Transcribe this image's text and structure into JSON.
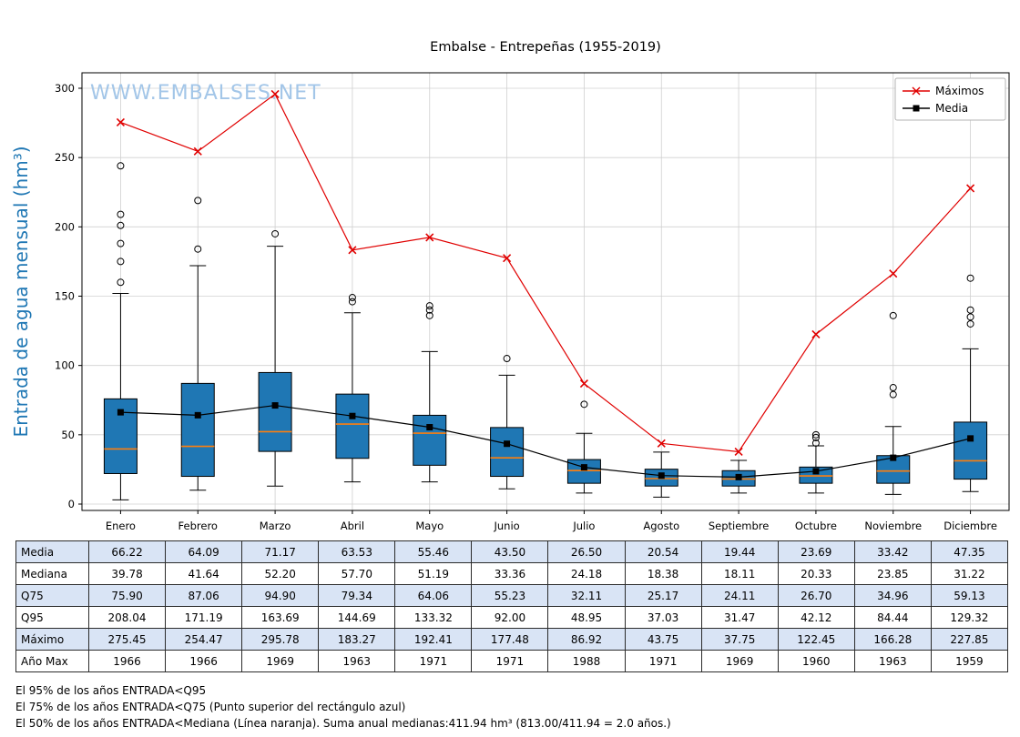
{
  "title": "Embalse - Entrepeñas (1955-2019)",
  "watermark": "WWW.EMBALSES.NET",
  "ylabel": "Entrada de agua mensual (hm³)",
  "colors": {
    "box_fill": "#1f77b4",
    "median": "#ff7f0e",
    "maximos": "#e00000",
    "media": "#000000",
    "ylabel": "#1f77b4",
    "watermark": "#a3c6e8",
    "grid": "#d0d0d0",
    "table_alt_row": "#d9e4f5"
  },
  "chart_data": {
    "type": "boxplot+line",
    "title": "Embalse - Entrepeñas (1955-2019)",
    "xlabel": "",
    "ylabel": "Entrada de agua mensual (hm³)",
    "ylim": [
      0,
      300
    ],
    "yticks": [
      0,
      50,
      100,
      150,
      200,
      250,
      300
    ],
    "grid": true,
    "legend_position": "top-right",
    "categories": [
      "Enero",
      "Febrero",
      "Marzo",
      "Abril",
      "Mayo",
      "Junio",
      "Julio",
      "Agosto",
      "Septiembre",
      "Octubre",
      "Noviembre",
      "Diciembre"
    ],
    "series": [
      {
        "name": "Máximos",
        "marker": "x",
        "color": "#e00000",
        "values": [
          275.45,
          254.47,
          295.78,
          183.27,
          192.41,
          177.48,
          86.92,
          43.75,
          37.75,
          122.45,
          166.28,
          227.85
        ]
      },
      {
        "name": "Media",
        "marker": "square",
        "color": "#000000",
        "values": [
          66.22,
          64.09,
          71.17,
          63.53,
          55.46,
          43.5,
          26.5,
          20.54,
          19.44,
          23.69,
          33.42,
          47.35
        ]
      }
    ],
    "boxes": [
      {
        "q1": 22,
        "median": 39.78,
        "q3": 75.9,
        "whisker_low": 3,
        "whisker_high": 152,
        "outliers": [
          160,
          175,
          188,
          201,
          209,
          244
        ]
      },
      {
        "q1": 20,
        "median": 41.64,
        "q3": 87.06,
        "whisker_low": 10,
        "whisker_high": 172,
        "outliers": [
          184,
          219
        ]
      },
      {
        "q1": 38,
        "median": 52.2,
        "q3": 94.9,
        "whisker_low": 13,
        "whisker_high": 186,
        "outliers": [
          195
        ]
      },
      {
        "q1": 33,
        "median": 57.7,
        "q3": 79.34,
        "whisker_low": 16,
        "whisker_high": 138,
        "outliers": [
          146,
          149
        ]
      },
      {
        "q1": 28,
        "median": 51.19,
        "q3": 64.06,
        "whisker_low": 16,
        "whisker_high": 110,
        "outliers": [
          136,
          140,
          143
        ]
      },
      {
        "q1": 20,
        "median": 33.36,
        "q3": 55.23,
        "whisker_low": 11,
        "whisker_high": 93,
        "outliers": [
          105
        ]
      },
      {
        "q1": 15,
        "median": 24.18,
        "q3": 32.11,
        "whisker_low": 8,
        "whisker_high": 51,
        "outliers": [
          72
        ]
      },
      {
        "q1": 13,
        "median": 18.38,
        "q3": 25.17,
        "whisker_low": 5,
        "whisker_high": 37.5,
        "outliers": []
      },
      {
        "q1": 13,
        "median": 18.11,
        "q3": 24.11,
        "whisker_low": 8,
        "whisker_high": 31.5,
        "outliers": []
      },
      {
        "q1": 15,
        "median": 20.33,
        "q3": 26.7,
        "whisker_low": 8,
        "whisker_high": 42,
        "outliers": [
          44,
          48,
          50
        ]
      },
      {
        "q1": 15,
        "median": 23.85,
        "q3": 34.96,
        "whisker_low": 7,
        "whisker_high": 56,
        "outliers": [
          79,
          84,
          136
        ]
      },
      {
        "q1": 18,
        "median": 31.22,
        "q3": 59.13,
        "whisker_low": 9,
        "whisker_high": 112,
        "outliers": [
          130,
          135,
          140,
          163
        ]
      }
    ]
  },
  "legend": {
    "maximos_label": "Máximos",
    "media_label": "Media"
  },
  "table": {
    "row_labels": [
      "Media",
      "Mediana",
      "Q75",
      "Q95",
      "Máximo",
      "Año Max"
    ],
    "rows": [
      [
        "66.22",
        "64.09",
        "71.17",
        "63.53",
        "55.46",
        "43.50",
        "26.50",
        "20.54",
        "19.44",
        "23.69",
        "33.42",
        "47.35"
      ],
      [
        "39.78",
        "41.64",
        "52.20",
        "57.70",
        "51.19",
        "33.36",
        "24.18",
        "18.38",
        "18.11",
        "20.33",
        "23.85",
        "31.22"
      ],
      [
        "75.90",
        "87.06",
        "94.90",
        "79.34",
        "64.06",
        "55.23",
        "32.11",
        "25.17",
        "24.11",
        "26.70",
        "34.96",
        "59.13"
      ],
      [
        "208.04",
        "171.19",
        "163.69",
        "144.69",
        "133.32",
        "92.00",
        "48.95",
        "37.03",
        "31.47",
        "42.12",
        "84.44",
        "129.32"
      ],
      [
        "275.45",
        "254.47",
        "295.78",
        "183.27",
        "192.41",
        "177.48",
        "86.92",
        "43.75",
        "37.75",
        "122.45",
        "166.28",
        "227.85"
      ],
      [
        "1966",
        "1966",
        "1969",
        "1963",
        "1971",
        "1971",
        "1988",
        "1971",
        "1969",
        "1960",
        "1963",
        "1959"
      ]
    ]
  },
  "footnotes": [
    "El 95% de los años ENTRADA<Q95",
    "El 75% de los años ENTRADA<Q75 (Punto superior del rectángulo azul)",
    "El 50% de los años ENTRADA<Mediana (Línea naranja). Suma anual medianas:411.94 hm³ (813.00/411.94 = 2.0 años.)"
  ]
}
